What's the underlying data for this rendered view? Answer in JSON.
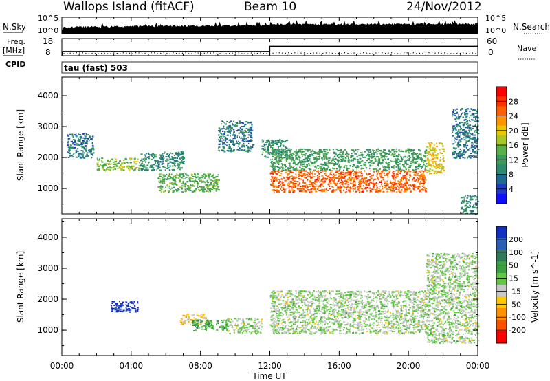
{
  "header": {
    "title": "Wallops Island (fitACF)",
    "beam": "Beam 10",
    "date": "24/Nov/2012",
    "cpid": "CPID",
    "program": "tau (fast) 503"
  },
  "top_panels": {
    "nsky_label": "N.Sky",
    "nsearch_label": "N.Search",
    "nsky_ticks": [
      "10^5",
      "10^0"
    ],
    "nsearch_ticks": [
      "10^5",
      "10^0"
    ],
    "freq_label": "Freq.",
    "freq_unit": "[MHz]",
    "freq_ticks": [
      "18",
      "8"
    ],
    "nave_label": "Nave",
    "nave_ticks": [
      "60",
      "0"
    ]
  },
  "power_colorbar": {
    "label": "Power [dB]",
    "ticks": [
      "28",
      "24",
      "20",
      "16",
      "12",
      "8",
      "4"
    ],
    "colors": [
      "#ff0000",
      "#ff3000",
      "#ff6000",
      "#ff9600",
      "#e8c800",
      "#a8c828",
      "#58b048",
      "#3a9a58",
      "#2c8a6e",
      "#1e6a90",
      "#1e3cc8",
      "#1010ff"
    ]
  },
  "velocity_colorbar": {
    "label": "Velocity [m s^-1]",
    "ticks": [
      "200",
      "100",
      "50",
      "15",
      "-15",
      "-50",
      "-100",
      "-200"
    ],
    "colors": [
      "#1030c0",
      "#2860b8",
      "#2e7a5a",
      "#3aa040",
      "#60c840",
      "#c8c8c8",
      "#ffc800",
      "#ff9000",
      "#ff5000",
      "#ff0000"
    ]
  },
  "axes": {
    "ylabel": "Slant Range [km]",
    "xlabel": "Time UT",
    "y_ticks": [
      "4000",
      "3000",
      "2000",
      "1000"
    ],
    "x_ticks": [
      "00:00",
      "04:00",
      "08:00",
      "12:00",
      "16:00",
      "20:00",
      "00:00"
    ]
  },
  "chart_data": [
    {
      "type": "heatmap",
      "name": "power",
      "xlabel": "Time UT",
      "ylabel": "Slant Range [km]",
      "xlim": [
        0,
        24
      ],
      "ylim": [
        180,
        4600
      ],
      "colorbar_label": "Power [dB]",
      "colorbar_range": [
        0,
        32
      ],
      "regions": [
        {
          "t": [
            0.3,
            1.8
          ],
          "r": [
            2000,
            2800
          ],
          "value": 8
        },
        {
          "t": [
            2.0,
            4.5
          ],
          "r": [
            1600,
            2000
          ],
          "value": 16
        },
        {
          "t": [
            4.5,
            7.0
          ],
          "r": [
            1600,
            2200
          ],
          "value": 10
        },
        {
          "t": [
            5.5,
            9.0
          ],
          "r": [
            900,
            1500
          ],
          "value": 14
        },
        {
          "t": [
            9.0,
            11.0
          ],
          "r": [
            2200,
            3200
          ],
          "value": 8
        },
        {
          "t": [
            11.5,
            13.0
          ],
          "r": [
            2000,
            2600
          ],
          "value": 10
        },
        {
          "t": [
            12.0,
            21.0
          ],
          "r": [
            900,
            1600
          ],
          "value": 26
        },
        {
          "t": [
            12.0,
            21.0
          ],
          "r": [
            1600,
            2300
          ],
          "value": 12
        },
        {
          "t": [
            21.0,
            22.0
          ],
          "r": [
            1500,
            2500
          ],
          "value": 20
        },
        {
          "t": [
            22.5,
            24.0
          ],
          "r": [
            2000,
            3600
          ],
          "value": 8
        },
        {
          "t": [
            23.0,
            24.0
          ],
          "r": [
            200,
            800
          ],
          "value": 10
        }
      ]
    },
    {
      "type": "heatmap",
      "name": "velocity",
      "xlabel": "Time UT",
      "ylabel": "Slant Range [km]",
      "xlim": [
        0,
        24
      ],
      "ylim": [
        180,
        4600
      ],
      "colorbar_label": "Velocity [m s^-1]",
      "colorbar_range": [
        -200,
        200
      ],
      "regions": [
        {
          "t": [
            2.8,
            4.4
          ],
          "r": [
            1600,
            1950
          ],
          "value": 200
        },
        {
          "t": [
            6.8,
            8.3
          ],
          "r": [
            1200,
            1550
          ],
          "value": -50
        },
        {
          "t": [
            7.5,
            9.5
          ],
          "r": [
            1000,
            1350
          ],
          "value": 50
        },
        {
          "t": [
            9.5,
            11.5
          ],
          "r": [
            900,
            1400
          ],
          "value": 0
        },
        {
          "t": [
            12.0,
            21.0
          ],
          "r": [
            900,
            2300
          ],
          "value": 0
        },
        {
          "t": [
            21.0,
            24.0
          ],
          "r": [
            600,
            3500
          ],
          "value": 0
        }
      ]
    },
    {
      "type": "line",
      "name": "N.Sky",
      "xlim": [
        0,
        24
      ],
      "y_scale": "log",
      "ylim": [
        1,
        100000
      ]
    },
    {
      "type": "line",
      "name": "Freq.",
      "xlim": [
        0,
        24
      ],
      "ylim": [
        8,
        18
      ],
      "x": [
        0,
        0.05,
        12.0,
        12.0,
        24
      ],
      "y": [
        8,
        10.5,
        10.5,
        13.5,
        13.5
      ]
    }
  ]
}
